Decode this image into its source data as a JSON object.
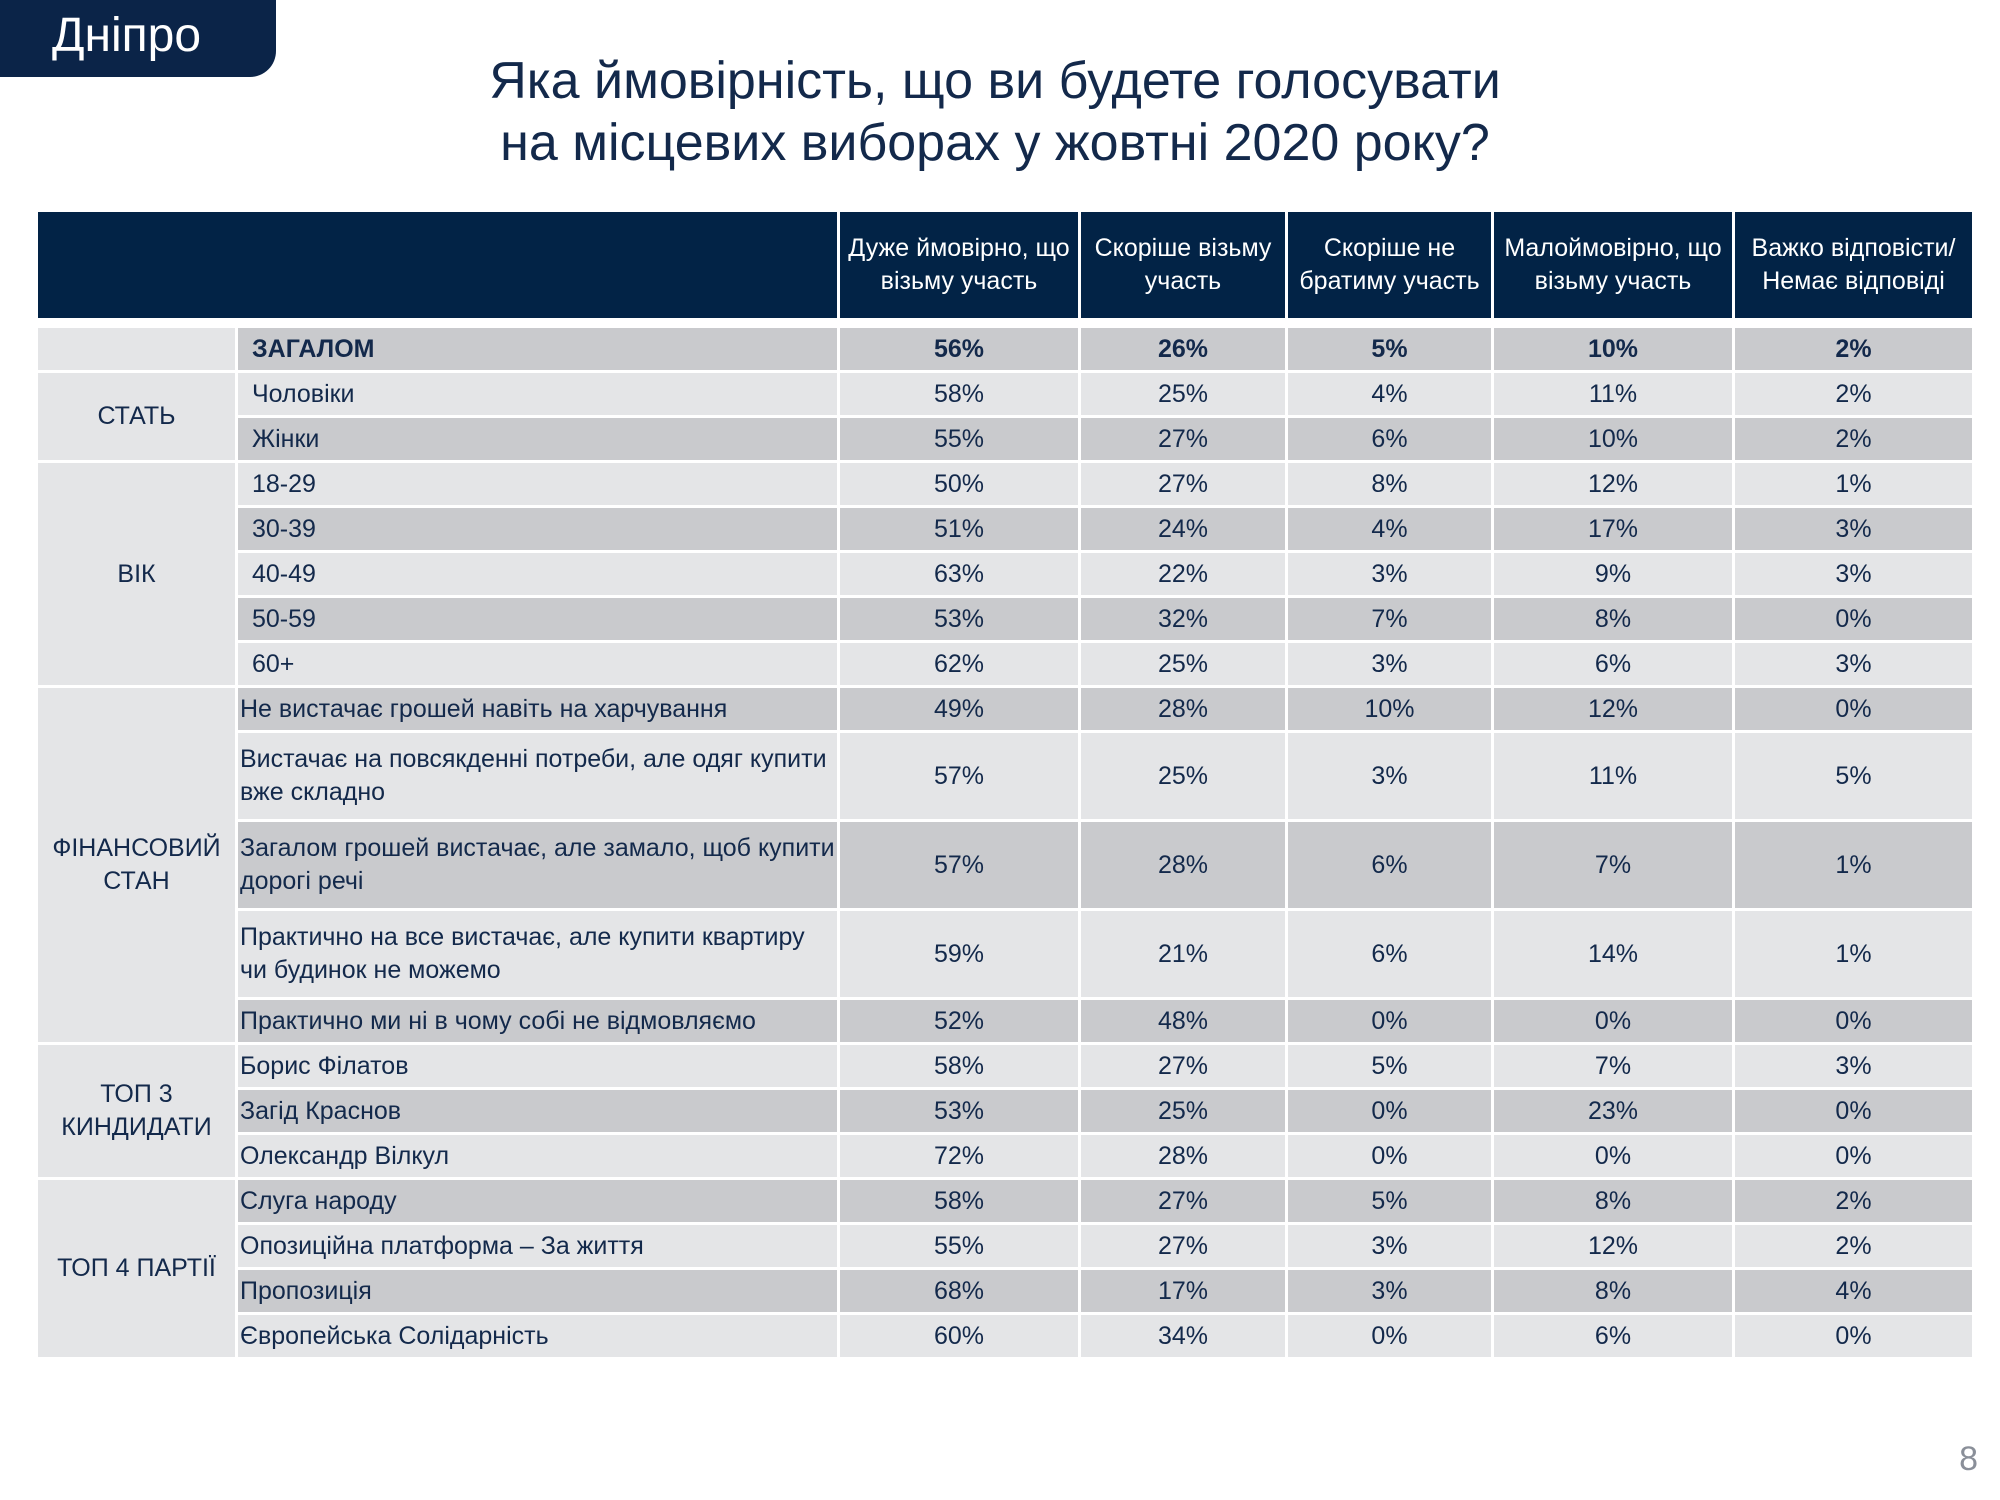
{
  "city": "Дніпро",
  "title_line1": "Яка ймовірність, що ви будете голосувати",
  "title_line2": "на місцевих виборах у жовтні 2020 року?",
  "columns": [
    "Дуже ймовірно, що візьму участь",
    "Скоріше візьму участь",
    "Скоріше не братиму участь",
    "Малоймовірно, що візьму участь",
    "Важко відповісти/ Немає відповіді"
  ],
  "total": {
    "label": "ЗАГАЛОМ",
    "values": [
      "56%",
      "26%",
      "5%",
      "10%",
      "2%"
    ]
  },
  "groups": [
    {
      "name": "СТАТЬ",
      "rows": [
        {
          "label": "Чоловіки",
          "values": [
            "58%",
            "25%",
            "4%",
            "11%",
            "2%"
          ]
        },
        {
          "label": "Жінки",
          "values": [
            "55%",
            "27%",
            "6%",
            "10%",
            "2%"
          ]
        }
      ]
    },
    {
      "name": "ВІК",
      "rows": [
        {
          "label": "18-29",
          "values": [
            "50%",
            "27%",
            "8%",
            "12%",
            "1%"
          ]
        },
        {
          "label": "30-39",
          "values": [
            "51%",
            "24%",
            "4%",
            "17%",
            "3%"
          ]
        },
        {
          "label": "40-49",
          "values": [
            "63%",
            "22%",
            "3%",
            "9%",
            "3%"
          ]
        },
        {
          "label": "50-59",
          "values": [
            "53%",
            "32%",
            "7%",
            "8%",
            "0%"
          ]
        },
        {
          "label": "60+",
          "values": [
            "62%",
            "25%",
            "3%",
            "6%",
            "3%"
          ]
        }
      ]
    },
    {
      "name": "ФІНАНСОВИЙ СТАН",
      "rows": [
        {
          "label": "Не вистачає грошей навіть на харчування",
          "values": [
            "49%",
            "28%",
            "10%",
            "12%",
            "0%"
          ]
        },
        {
          "label": "Вистачає на повсякденні потреби, але одяг купити вже складно",
          "values": [
            "57%",
            "25%",
            "3%",
            "11%",
            "5%"
          ]
        },
        {
          "label": "Загалом грошей вистачає, але замало, щоб купити дорогі речі",
          "values": [
            "57%",
            "28%",
            "6%",
            "7%",
            "1%"
          ]
        },
        {
          "label": "Практично на все вистачає, але купити квартиру чи будинок не можемо",
          "values": [
            "59%",
            "21%",
            "6%",
            "14%",
            "1%"
          ]
        },
        {
          "label": "Практично ми ні в чому собі не відмовляємо",
          "values": [
            "52%",
            "48%",
            "0%",
            "0%",
            "0%"
          ]
        }
      ]
    },
    {
      "name": "ТОП 3 КИНДИДАТИ",
      "rows": [
        {
          "label": "Борис Філатов",
          "values": [
            "58%",
            "27%",
            "5%",
            "7%",
            "3%"
          ]
        },
        {
          "label": "Загід Краснов",
          "values": [
            "53%",
            "25%",
            "0%",
            "23%",
            "0%"
          ]
        },
        {
          "label": "Олександр Вілкул",
          "values": [
            "72%",
            "28%",
            "0%",
            "0%",
            "0%"
          ]
        }
      ]
    },
    {
      "name": "ТОП 4 ПАРТІЇ",
      "rows": [
        {
          "label": "Слуга народу",
          "values": [
            "58%",
            "27%",
            "5%",
            "8%",
            "2%"
          ]
        },
        {
          "label": "Опозиційна платформа – За життя",
          "values": [
            "55%",
            "27%",
            "3%",
            "12%",
            "2%"
          ]
        },
        {
          "label": "Пропозиція",
          "values": [
            "68%",
            "17%",
            "3%",
            "8%",
            "4%"
          ]
        },
        {
          "label": "Європейська Солідарність",
          "values": [
            "60%",
            "34%",
            "0%",
            "6%",
            "0%"
          ]
        }
      ]
    }
  ],
  "page_number": "8"
}
